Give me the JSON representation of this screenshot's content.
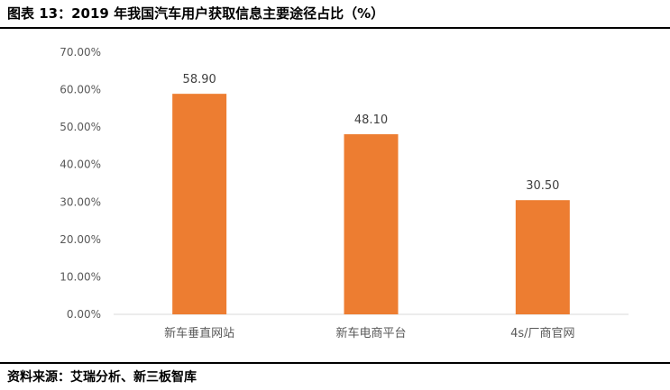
{
  "figure": {
    "title": "图表 13：2019 年我国汽车用户获取信息主要途径占比（%）",
    "source": "资料来源：艾瑞分析、新三板智库"
  },
  "chart_data": {
    "type": "bar",
    "title": "",
    "xlabel": "",
    "ylabel": "",
    "categories": [
      "新车垂直网站",
      "新车电商平台",
      "4s/厂商官网"
    ],
    "values": [
      58.9,
      48.1,
      30.5
    ],
    "data_labels": [
      "58.90",
      "48.10",
      "30.50"
    ],
    "y_ticks": [
      "0.00%",
      "10.00%",
      "20.00%",
      "30.00%",
      "40.00%",
      "50.00%",
      "60.00%",
      "70.00%"
    ],
    "ylim": [
      0,
      70
    ],
    "grid": false,
    "legend": "none",
    "bar_color": "#ED7D31"
  }
}
